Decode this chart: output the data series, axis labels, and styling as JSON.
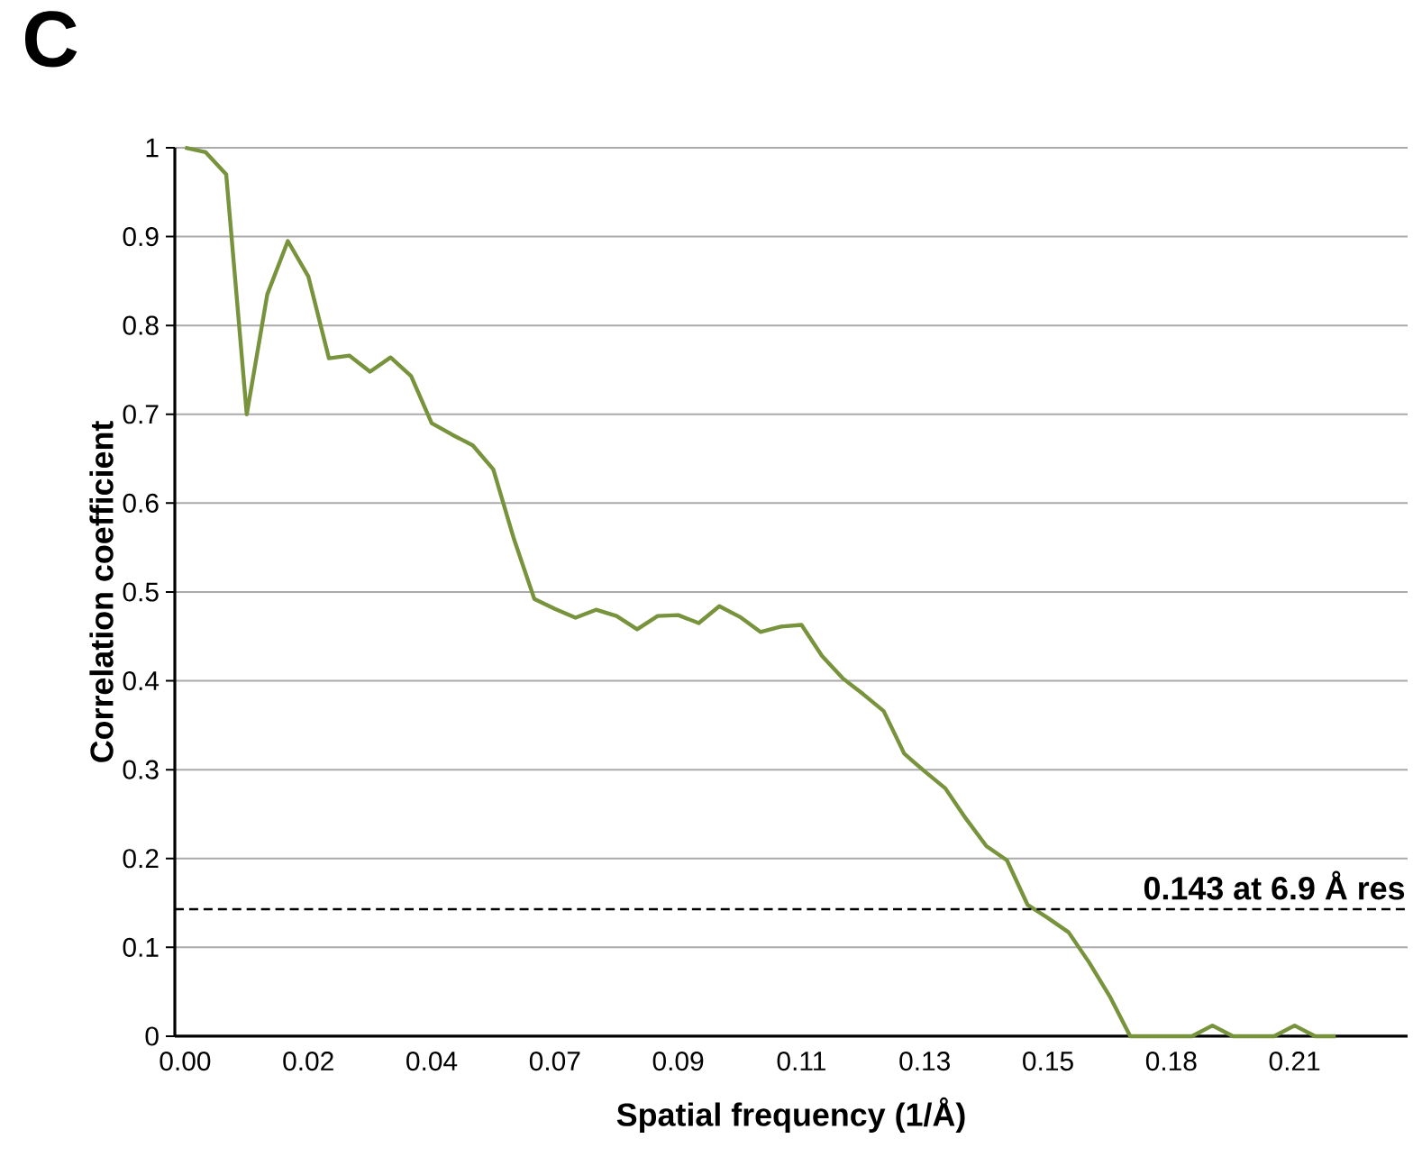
{
  "chart_data": {
    "type": "line",
    "annotations": [
      "C"
    ],
    "xlabel": "Spatial frequency (1/Å)",
    "ylabel": "Correlation coefficient",
    "categories": [
      "0.00",
      null,
      null,
      null,
      null,
      null,
      "0.02",
      null,
      null,
      null,
      null,
      null,
      "0.04",
      null,
      null,
      null,
      null,
      null,
      "0.07",
      null,
      null,
      null,
      null,
      null,
      "0.09",
      null,
      null,
      null,
      null,
      null,
      "0.11",
      null,
      null,
      null,
      null,
      null,
      "0.13",
      null,
      null,
      null,
      null,
      null,
      "0.15",
      null,
      null,
      null,
      null,
      null,
      "0.18",
      null,
      null,
      null,
      null,
      null,
      "0.21",
      null,
      null,
      null,
      null,
      null
    ],
    "series": [
      {
        "color": "#77933c",
        "values": [
          1.0,
          0.995,
          0.97,
          0.7,
          0.835,
          0.895,
          0.855,
          0.763,
          0.766,
          0.748,
          0.764,
          0.743,
          0.69,
          0.677,
          0.665,
          0.638,
          0.56,
          0.492,
          0.481,
          0.471,
          0.48,
          0.473,
          0.458,
          0.473,
          0.474,
          0.465,
          0.484,
          0.472,
          0.455,
          0.461,
          0.463,
          0.428,
          0.403,
          0.385,
          0.366,
          0.318,
          0.298,
          0.279,
          0.245,
          0.214,
          0.198,
          0.148,
          0.133,
          0.117,
          0.083,
          0.045,
          0,
          0,
          0,
          0,
          0.012,
          0,
          0,
          0,
          0.012,
          0,
          0,
          null,
          null,
          null
        ]
      }
    ],
    "ylim": [
      0,
      1
    ],
    "yticks": [
      0,
      0.1,
      0.2,
      0.3,
      0.4,
      0.5,
      0.6,
      0.7,
      0.8,
      0.9,
      1
    ],
    "grid": "y",
    "marker": "none",
    "line_style": "solid",
    "ref_lines": [
      {
        "axis": "y",
        "value": 0.143,
        "label": "0.143 at 6.9 Å res",
        "color": "#000000",
        "line_style": "dashed"
      }
    ]
  }
}
